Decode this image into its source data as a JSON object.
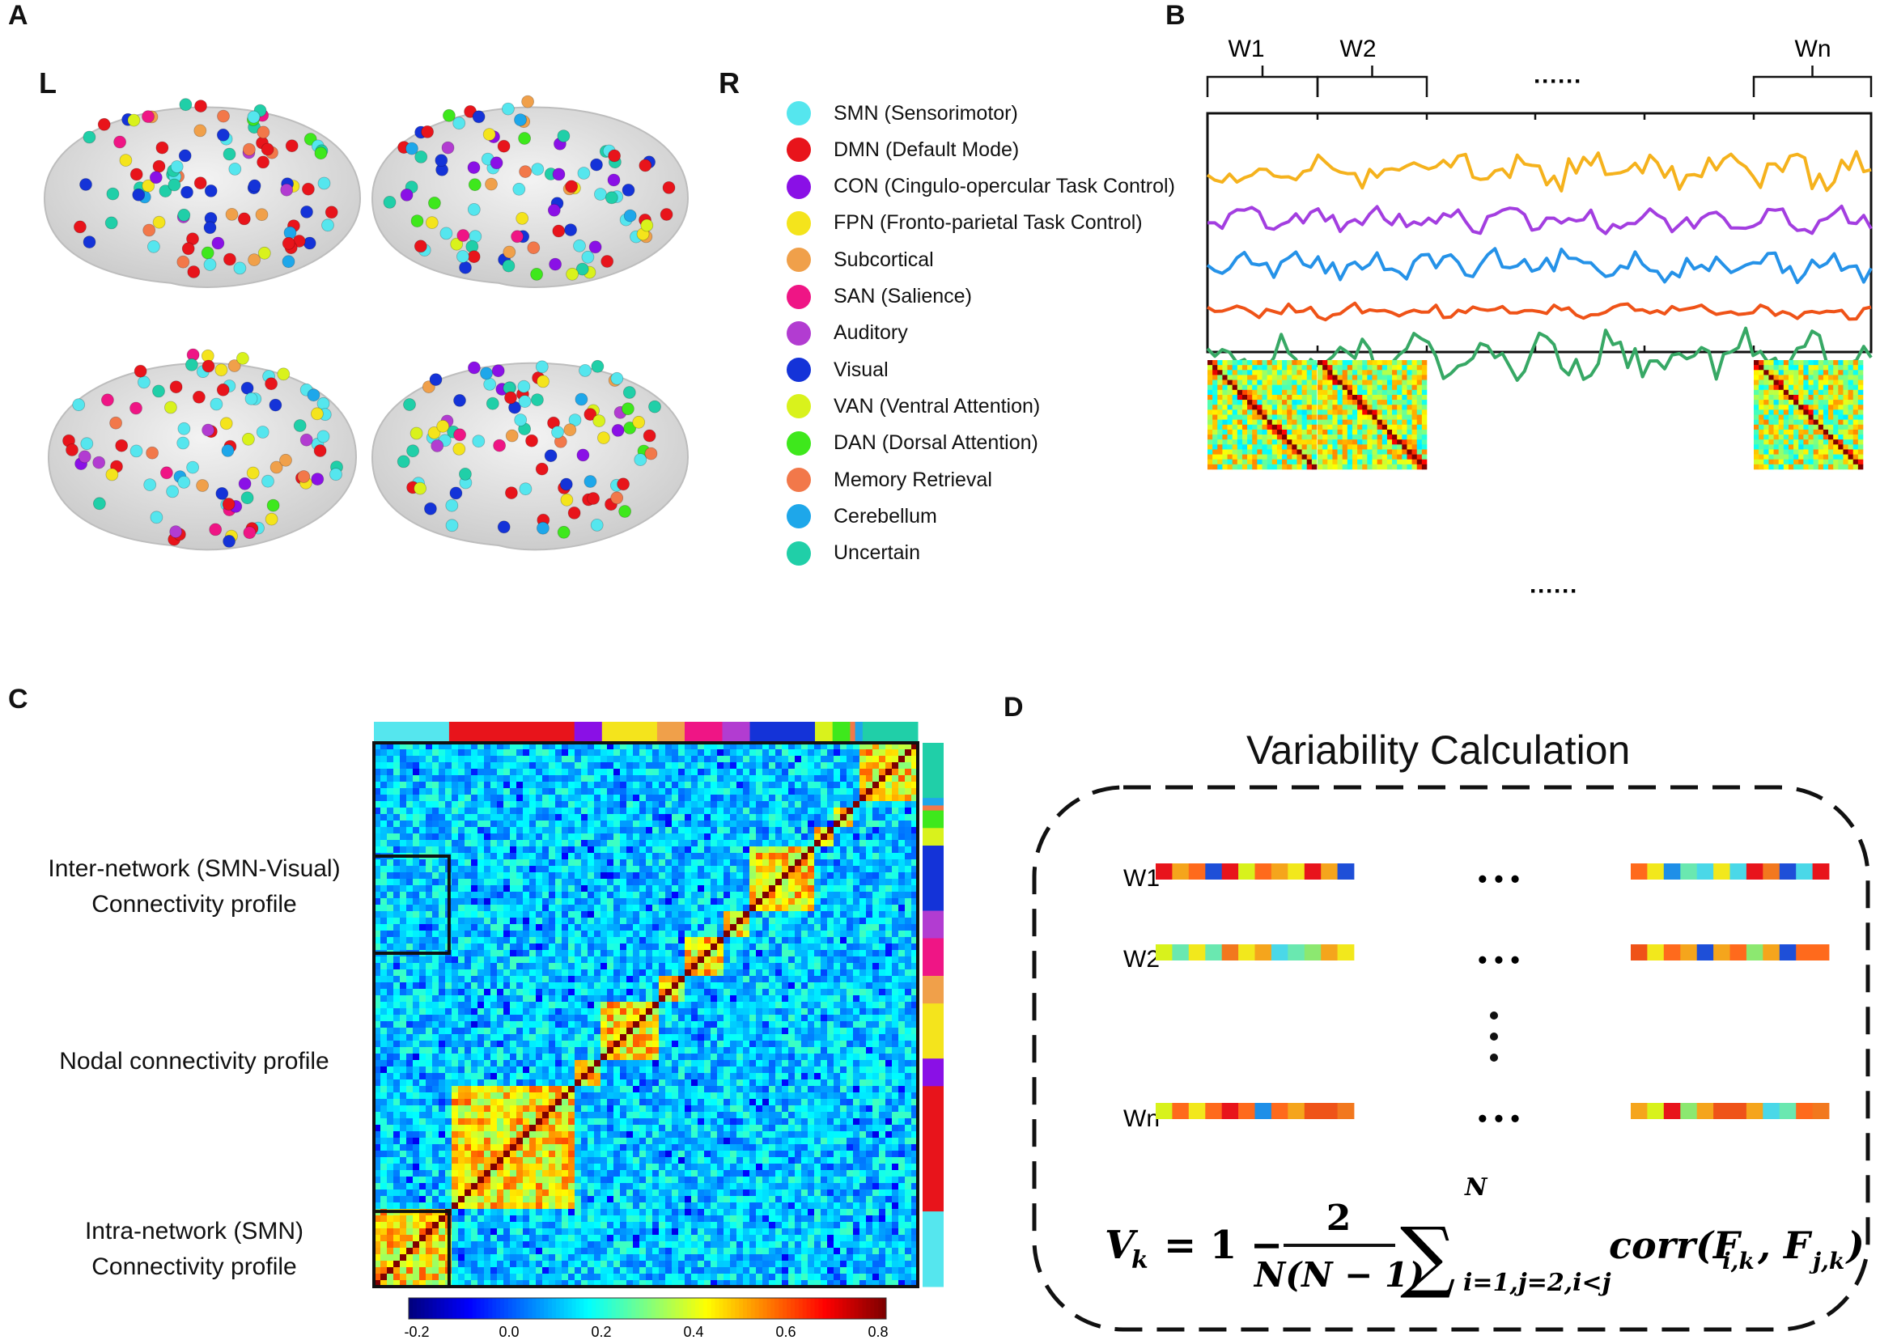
{
  "panels": {
    "a": "A",
    "b": "B",
    "c": "C",
    "d": "D"
  },
  "panel_a": {
    "left_marker": "L",
    "right_marker": "R",
    "legend": [
      {
        "label": "SMN (Sensorimotor)",
        "color": "#55e6ee"
      },
      {
        "label": "DMN (Default Mode)",
        "color": "#e8141b"
      },
      {
        "label": "CON (Cingulo-opercular Task Control)",
        "color": "#8a10e6"
      },
      {
        "label": "FPN (Fronto-parietal Task Control)",
        "color": "#f4e41c"
      },
      {
        "label": "Subcortical",
        "color": "#f0a04a"
      },
      {
        "label": "SAN (Salience)",
        "color": "#ef1585"
      },
      {
        "label": "Auditory",
        "color": "#b23cd1"
      },
      {
        "label": "Visual",
        "color": "#1433d8"
      },
      {
        "label": "VAN (Ventral Attention)",
        "color": "#d9f21c"
      },
      {
        "label": "DAN (Dorsal Attention)",
        "color": "#3ee81c"
      },
      {
        "label": "Memory Retrieval",
        "color": "#f2784a"
      },
      {
        "label": "Cerebellum",
        "color": "#1ea7ea"
      },
      {
        "label": "Uncertain",
        "color": "#20cfa8"
      }
    ]
  },
  "panel_b": {
    "windows": [
      "W1",
      "W2",
      "Wn"
    ],
    "ellipsis_top": "······",
    "ellipsis_bottom": "······",
    "series_colors": [
      "#f5b21d",
      "#a33ee0",
      "#2592e8",
      "#ef5318",
      "#37a865"
    ]
  },
  "panel_c": {
    "labels": {
      "inter_line1": "Inter-network (SMN-Visual)",
      "inter_line2": "Connectivity profile",
      "nodal": "Nodal connectivity profile",
      "intra_line1": "Intra-network (SMN)",
      "intra_line2": "Connectivity profile"
    },
    "colorbar": {
      "ticks": [
        "-0.2",
        "0.0",
        "0.2",
        "0.4",
        "0.6",
        "0.8"
      ],
      "min": -0.2,
      "max": 0.8
    },
    "network_bar_top": [
      {
        "color": "#55e6ee",
        "weight": 60
      },
      {
        "color": "#e8141b",
        "weight": 100
      },
      {
        "color": "#8a10e6",
        "weight": 22
      },
      {
        "color": "#f4e41c",
        "weight": 44
      },
      {
        "color": "#f0a04a",
        "weight": 22
      },
      {
        "color": "#ef1585",
        "weight": 30
      },
      {
        "color": "#b23cd1",
        "weight": 22
      },
      {
        "color": "#1433d8",
        "weight": 52
      },
      {
        "color": "#d9f21c",
        "weight": 14
      },
      {
        "color": "#3ee81c",
        "weight": 14
      },
      {
        "color": "#f2784a",
        "weight": 4
      },
      {
        "color": "#1ea7ea",
        "weight": 6
      },
      {
        "color": "#20cfa8",
        "weight": 44
      }
    ]
  },
  "panel_d": {
    "title": "Variability Calculation",
    "rows": [
      {
        "label": "W1"
      },
      {
        "label": "W2"
      },
      {
        "label": "Wn"
      }
    ],
    "dots": "• • •",
    "formula": {
      "lhs": "V",
      "lhs_sub": "k",
      "one": "= 1 −",
      "num": "2",
      "den": "N(N − 1)",
      "sigma": "∑",
      "upper": "N",
      "lower": "i=1,j=2,i<j",
      "corr": "corr(F",
      "sub1": "i,k",
      "mid": ", F",
      "sub2": "j,k",
      "close": ")"
    }
  }
}
